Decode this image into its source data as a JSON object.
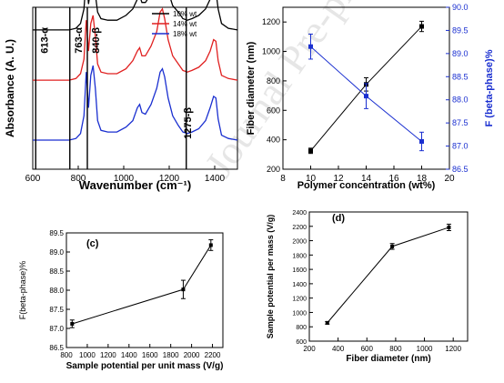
{
  "watermark": "Journal Pre-proof",
  "chart_data": [
    {
      "id": "a",
      "type": "line",
      "xlabel": "Wavenumber (cm⁻¹)",
      "ylabel": "Absorbance (A. U.)",
      "xlim": [
        600,
        1500
      ],
      "xticks": [
        600,
        800,
        1000,
        1200,
        1400
      ],
      "series": [
        {
          "name": "10% wt",
          "color": "#000000",
          "x": [
            600,
            640,
            680,
            720,
            760,
            790,
            810,
            825,
            835,
            845,
            855,
            865,
            875,
            885,
            900,
            930,
            970,
            1010,
            1040,
            1060,
            1070,
            1080,
            1095,
            1120,
            1145,
            1160,
            1170,
            1180,
            1195,
            1215,
            1240,
            1260,
            1280,
            1300,
            1330,
            1360,
            1380,
            1395,
            1405,
            1415,
            1430,
            1460,
            1500
          ],
          "y": [
            0.86,
            0.86,
            0.86,
            0.86,
            0.86,
            0.87,
            0.9,
            0.99,
            1.18,
            1.02,
            1.12,
            1.19,
            1.08,
            0.97,
            0.93,
            0.92,
            0.92,
            0.95,
            0.99,
            1.05,
            1.07,
            1.03,
            1.03,
            1.08,
            1.15,
            1.25,
            1.26,
            1.21,
            1.1,
            1.01,
            0.97,
            0.93,
            0.92,
            0.93,
            0.95,
            0.99,
            1.05,
            1.11,
            1.1,
            0.99,
            0.9,
            0.87,
            0.86
          ]
        },
        {
          "name": "14% wt",
          "color": "#e02020",
          "x": [
            600,
            640,
            680,
            720,
            760,
            790,
            810,
            825,
            835,
            845,
            855,
            865,
            875,
            885,
            900,
            930,
            970,
            1010,
            1040,
            1060,
            1070,
            1080,
            1095,
            1120,
            1145,
            1160,
            1170,
            1180,
            1195,
            1215,
            1240,
            1260,
            1280,
            1300,
            1330,
            1360,
            1380,
            1395,
            1405,
            1415,
            1430,
            1460,
            1500
          ],
          "y": [
            0.55,
            0.55,
            0.55,
            0.55,
            0.55,
            0.56,
            0.59,
            0.68,
            0.92,
            0.73,
            0.9,
            0.95,
            0.82,
            0.65,
            0.6,
            0.59,
            0.59,
            0.62,
            0.67,
            0.73,
            0.75,
            0.7,
            0.7,
            0.76,
            0.85,
            0.97,
            0.99,
            0.93,
            0.8,
            0.7,
            0.65,
            0.61,
            0.6,
            0.61,
            0.63,
            0.67,
            0.73,
            0.8,
            0.79,
            0.67,
            0.58,
            0.56,
            0.55
          ]
        },
        {
          "name": "18% wt",
          "color": "#1a2fd0",
          "x": [
            600,
            640,
            680,
            720,
            760,
            790,
            810,
            825,
            835,
            845,
            855,
            865,
            875,
            885,
            900,
            930,
            970,
            1010,
            1040,
            1060,
            1070,
            1080,
            1095,
            1120,
            1145,
            1160,
            1170,
            1180,
            1195,
            1215,
            1240,
            1260,
            1280,
            1300,
            1330,
            1360,
            1380,
            1395,
            1405,
            1415,
            1430,
            1460,
            1500
          ],
          "y": [
            0.18,
            0.18,
            0.18,
            0.18,
            0.18,
            0.19,
            0.22,
            0.33,
            0.6,
            0.38,
            0.58,
            0.64,
            0.5,
            0.3,
            0.24,
            0.23,
            0.23,
            0.26,
            0.3,
            0.38,
            0.4,
            0.35,
            0.34,
            0.4,
            0.5,
            0.6,
            0.62,
            0.57,
            0.44,
            0.33,
            0.27,
            0.23,
            0.22,
            0.23,
            0.25,
            0.3,
            0.38,
            0.45,
            0.44,
            0.31,
            0.21,
            0.19,
            0.18
          ]
        }
      ],
      "annotations": [
        {
          "text": "613-α",
          "x": 613
        },
        {
          "text": "763-α",
          "x": 763
        },
        {
          "text": "840-β",
          "x": 840
        },
        {
          "text": "1275-β",
          "x": 1275
        }
      ],
      "legend": "top-right"
    },
    {
      "id": "b",
      "type": "line",
      "xlabel": "Polymer concentration (wt%)",
      "ylabel": "Fiber diameter (nm)",
      "ylabel_right": "F (beta-phase)%",
      "xlim": [
        8,
        20
      ],
      "xticks": [
        8,
        10,
        12,
        14,
        16,
        18,
        20
      ],
      "ylim": [
        200,
        1300
      ],
      "yticks": [
        200,
        400,
        600,
        800,
        1000,
        1200
      ],
      "ylim_right": [
        86.5,
        90.0
      ],
      "yticks_right": [
        86.5,
        87.0,
        87.5,
        88.0,
        88.5,
        89.0,
        89.5,
        90.0
      ],
      "series": [
        {
          "axis": "left",
          "color": "#000000",
          "marker": "square",
          "x": [
            10,
            14,
            18
          ],
          "y": [
            325,
            776,
            1170
          ],
          "err": [
            18,
            45,
            35
          ]
        },
        {
          "axis": "right",
          "color": "#1a2fd0",
          "marker": "square",
          "x": [
            10,
            14,
            18
          ],
          "y": [
            89.15,
            88.08,
            87.1
          ],
          "err": [
            0.27,
            0.27,
            0.2
          ]
        }
      ]
    },
    {
      "id": "c",
      "type": "line",
      "panel_label": "(c)",
      "xlabel": "Sample potential per unit mass (V/g)",
      "ylabel": "F(beta-phase)%",
      "xlim": [
        800,
        2300
      ],
      "xticks": [
        800,
        1000,
        1200,
        1400,
        1600,
        1800,
        2000,
        2200
      ],
      "ylim": [
        86.5,
        89.5
      ],
      "yticks": [
        86.5,
        87.0,
        87.5,
        88.0,
        88.5,
        89.0,
        89.5
      ],
      "series": [
        {
          "color": "#000000",
          "marker": "square",
          "x": [
            855,
            1920,
            2185
          ],
          "y": [
            87.12,
            88.02,
            89.18
          ],
          "err": [
            0.1,
            0.24,
            0.14
          ]
        }
      ]
    },
    {
      "id": "d",
      "type": "line",
      "panel_label": "(d)",
      "xlabel": "Fiber diameter (nm)",
      "ylabel": "Sample potential per mass (V/g)",
      "xlim": [
        200,
        1300
      ],
      "xticks": [
        200,
        400,
        600,
        800,
        1000,
        1200
      ],
      "ylim": [
        600,
        2400
      ],
      "yticks": [
        600,
        800,
        1000,
        1200,
        1400,
        1600,
        1800,
        2000,
        2200,
        2400
      ],
      "series": [
        {
          "color": "#000000",
          "marker": "square",
          "x": [
            325,
            776,
            1170
          ],
          "y": [
            855,
            1920,
            2185
          ],
          "err": [
            18,
            40,
            45
          ]
        }
      ]
    }
  ]
}
